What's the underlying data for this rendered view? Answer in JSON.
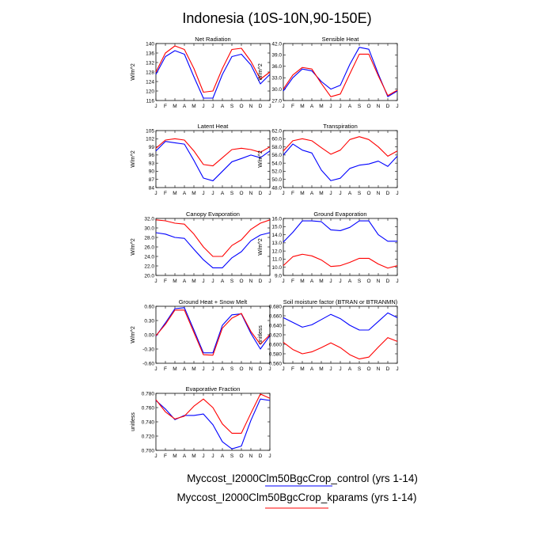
{
  "figure": {
    "title": "Indonesia (10S-10N,90-150E)",
    "colors": {
      "control": "#0000ff",
      "kparams": "#ff0000"
    }
  },
  "legend": {
    "entries": [
      {
        "label": "Myccost_I2000Clm50BgcCrop_control (yrs 1-14)",
        "color": "#0000ff"
      },
      {
        "label": "Myccost_I2000Clm50BgcCrop_kparams (yrs 1-14)",
        "color": "#ff0000"
      }
    ]
  },
  "chart_data": [
    {
      "type": "line",
      "title": "Net Radiation",
      "ylabel": "W/m^2",
      "categories": [
        "J",
        "F",
        "M",
        "A",
        "M",
        "J",
        "J",
        "A",
        "S",
        "O",
        "N",
        "D",
        "J"
      ],
      "ylim": [
        116,
        140
      ],
      "yticks": [
        "140",
        "136",
        "132",
        "128",
        "124",
        "120",
        "116"
      ],
      "series": [
        {
          "name": "Myccost_I2000Clm50BgcCrop_control (yrs 1-14)",
          "color": "#0000ff",
          "values": [
            127,
            134.5,
            137,
            135.5,
            126,
            117,
            117,
            127,
            134.5,
            135.5,
            131,
            123,
            127
          ]
        },
        {
          "name": "Myccost_I2000Clm50BgcCrop_kparams (yrs 1-14)",
          "color": "#ff0000",
          "values": [
            128,
            136,
            139,
            137.5,
            129.5,
            119.5,
            120,
            129.5,
            137.5,
            138,
            132.5,
            125,
            128
          ]
        }
      ]
    },
    {
      "type": "line",
      "title": "Sensible Heat",
      "ylabel": "W/m^2",
      "categories": [
        "J",
        "F",
        "M",
        "A",
        "M",
        "J",
        "J",
        "A",
        "S",
        "O",
        "N",
        "D",
        "J"
      ],
      "ylim": [
        27.0,
        42.0
      ],
      "yticks": [
        "42.0",
        "39.0",
        "36.0",
        "33.0",
        "30.0",
        "27.0"
      ],
      "series": [
        {
          "name": "Myccost_I2000Clm50BgcCrop_control (yrs 1-14)",
          "color": "#0000ff",
          "values": [
            29.5,
            33,
            35.3,
            34.8,
            32,
            30,
            31,
            36.5,
            41,
            40.5,
            34,
            28,
            29.5
          ]
        },
        {
          "name": "Myccost_I2000Clm50BgcCrop_kparams (yrs 1-14)",
          "color": "#ff0000",
          "values": [
            30,
            33.7,
            35.7,
            35.3,
            31.5,
            28,
            28.7,
            34,
            39.2,
            39.2,
            33.5,
            28.3,
            29.7
          ]
        }
      ]
    },
    {
      "type": "line",
      "title": "Latent Heat",
      "ylabel": "W/m^2",
      "categories": [
        "J",
        "F",
        "M",
        "A",
        "M",
        "J",
        "J",
        "A",
        "S",
        "O",
        "N",
        "D",
        "J"
      ],
      "ylim": [
        84,
        105
      ],
      "yticks": [
        "105",
        "102",
        "99",
        "96",
        "93",
        "90",
        "87",
        "84"
      ],
      "series": [
        {
          "name": "Myccost_I2000Clm50BgcCrop_control (yrs 1-14)",
          "color": "#0000ff",
          "values": [
            97.5,
            101,
            100.5,
            100,
            94,
            87.5,
            86.5,
            90,
            93.5,
            94.7,
            96,
            95,
            97.5
          ]
        },
        {
          "name": "Myccost_I2000Clm50BgcCrop_kparams (yrs 1-14)",
          "color": "#ff0000",
          "values": [
            98.5,
            101.5,
            102,
            101.5,
            97.5,
            92.5,
            92,
            95,
            98,
            98.5,
            98,
            97,
            99
          ]
        }
      ]
    },
    {
      "type": "line",
      "title": "Transpiration",
      "ylabel": "W/m^2",
      "categories": [
        "J",
        "F",
        "M",
        "A",
        "M",
        "J",
        "J",
        "A",
        "S",
        "O",
        "N",
        "D",
        "J"
      ],
      "ylim": [
        48.0,
        62.0
      ],
      "yticks": [
        "62.0",
        "60.0",
        "58.0",
        "56.0",
        "54.0",
        "52.0",
        "50.0",
        "48.0"
      ],
      "series": [
        {
          "name": "Myccost_I2000Clm50BgcCrop_control (yrs 1-14)",
          "color": "#0000ff",
          "values": [
            56,
            58.7,
            57.2,
            56.5,
            52.3,
            49.7,
            50.3,
            52.7,
            53.5,
            53.8,
            54.5,
            53.2,
            55.7
          ]
        },
        {
          "name": "Myccost_I2000Clm50BgcCrop_kparams (yrs 1-14)",
          "color": "#ff0000",
          "values": [
            57,
            59.5,
            60,
            59.5,
            57.8,
            56.2,
            57.2,
            59.8,
            60.5,
            59.8,
            58,
            55.7,
            57
          ]
        }
      ]
    },
    {
      "type": "line",
      "title": "Canopy Evaporation",
      "ylabel": "W/m^2",
      "categories": [
        "J",
        "F",
        "M",
        "A",
        "M",
        "J",
        "J",
        "A",
        "S",
        "O",
        "N",
        "D",
        "J"
      ],
      "ylim": [
        20.0,
        32.0
      ],
      "yticks": [
        "32.0",
        "30.0",
        "28.0",
        "26.0",
        "24.0",
        "22.0",
        "20.0"
      ],
      "series": [
        {
          "name": "Myccost_I2000Clm50BgcCrop_control (yrs 1-14)",
          "color": "#0000ff",
          "values": [
            29,
            28.7,
            28,
            27.8,
            25.5,
            23.3,
            21.6,
            21.6,
            23.7,
            25,
            27.3,
            28.5,
            29
          ]
        },
        {
          "name": "Myccost_I2000Clm50BgcCrop_kparams (yrs 1-14)",
          "color": "#ff0000",
          "values": [
            31.7,
            31.5,
            31,
            30.8,
            28.7,
            26,
            24,
            24,
            26.3,
            27.5,
            29.7,
            31,
            31.7
          ]
        }
      ]
    },
    {
      "type": "line",
      "title": "Ground Evaporation",
      "ylabel": "W/m^2",
      "categories": [
        "J",
        "F",
        "M",
        "A",
        "M",
        "J",
        "J",
        "A",
        "S",
        "O",
        "N",
        "D",
        "J"
      ],
      "ylim": [
        9.0,
        16.0
      ],
      "yticks": [
        "16.0",
        "15.0",
        "14.0",
        "13.0",
        "12.0",
        "11.0",
        "10.0",
        "9.0"
      ],
      "series": [
        {
          "name": "Myccost_I2000Clm50BgcCrop_control (yrs 1-14)",
          "color": "#0000ff",
          "values": [
            13.1,
            14.3,
            15.7,
            15.7,
            15.6,
            14.6,
            14.5,
            14.9,
            15.7,
            15.7,
            14,
            13.2,
            13.2
          ]
        },
        {
          "name": "Myccost_I2000Clm50BgcCrop_kparams (yrs 1-14)",
          "color": "#ff0000",
          "values": [
            10.2,
            11.3,
            11.6,
            11.4,
            10.9,
            10.1,
            10.2,
            10.6,
            11.1,
            11.1,
            10.4,
            9.9,
            10.2
          ]
        }
      ]
    },
    {
      "type": "line",
      "title": "Ground Heat + Snow Melt",
      "ylabel": "W/m^2",
      "categories": [
        "J",
        "F",
        "M",
        "A",
        "M",
        "J",
        "J",
        "A",
        "S",
        "O",
        "N",
        "D",
        "J"
      ],
      "ylim": [
        -0.6,
        0.6
      ],
      "yticks": [
        "0.60",
        "0.30",
        "0.00",
        "-0.30",
        "-0.60"
      ],
      "series": [
        {
          "name": "Myccost_I2000Clm50BgcCrop_control (yrs 1-14)",
          "color": "#0000ff",
          "values": [
            -0.03,
            0.25,
            0.55,
            0.57,
            0.1,
            -0.38,
            -0.38,
            0.2,
            0.42,
            0.44,
            0.03,
            -0.3,
            -0.02
          ]
        },
        {
          "name": "Myccost_I2000Clm50BgcCrop_kparams (yrs 1-14)",
          "color": "#ff0000",
          "values": [
            -0.02,
            0.22,
            0.52,
            0.52,
            0.05,
            -0.42,
            -0.43,
            0.14,
            0.35,
            0.45,
            0.07,
            -0.2,
            0.0
          ]
        }
      ]
    },
    {
      "type": "line",
      "title": "Soil moisture factor (BTRAN or BTRANMN)",
      "ylabel": "unitless",
      "categories": [
        "J",
        "F",
        "M",
        "A",
        "M",
        "J",
        "J",
        "A",
        "S",
        "O",
        "N",
        "D",
        "J"
      ],
      "ylim": [
        0.56,
        0.68
      ],
      "yticks": [
        "0.680",
        "0.660",
        "0.640",
        "0.620",
        "0.600",
        "0.580",
        "0.560"
      ],
      "series": [
        {
          "name": "Myccost_I2000Clm50BgcCrop_control (yrs 1-14)",
          "color": "#0000ff",
          "values": [
            0.656,
            0.646,
            0.636,
            0.641,
            0.652,
            0.663,
            0.654,
            0.64,
            0.63,
            0.63,
            0.648,
            0.666,
            0.656
          ]
        },
        {
          "name": "Myccost_I2000Clm50BgcCrop_kparams (yrs 1-14)",
          "color": "#ff0000",
          "values": [
            0.604,
            0.589,
            0.58,
            0.584,
            0.593,
            0.603,
            0.593,
            0.578,
            0.569,
            0.573,
            0.594,
            0.614,
            0.606
          ]
        }
      ]
    },
    {
      "type": "line",
      "title": "Evaporative Fraction",
      "ylabel": "unitless",
      "categories": [
        "J",
        "F",
        "M",
        "A",
        "M",
        "J",
        "J",
        "A",
        "S",
        "O",
        "N",
        "D",
        "J"
      ],
      "ylim": [
        0.7,
        0.78
      ],
      "yticks": [
        "0.780",
        "0.760",
        "0.740",
        "0.720",
        "0.700"
      ],
      "series": [
        {
          "name": "Myccost_I2000Clm50BgcCrop_control (yrs 1-14)",
          "color": "#0000ff",
          "values": [
            0.77,
            0.758,
            0.743,
            0.749,
            0.749,
            0.751,
            0.736,
            0.712,
            0.702,
            0.706,
            0.742,
            0.772,
            0.77
          ]
        },
        {
          "name": "Myccost_I2000Clm50BgcCrop_kparams (yrs 1-14)",
          "color": "#ff0000",
          "values": [
            0.771,
            0.754,
            0.744,
            0.748,
            0.762,
            0.772,
            0.76,
            0.737,
            0.724,
            0.724,
            0.752,
            0.779,
            0.773
          ]
        }
      ]
    }
  ]
}
